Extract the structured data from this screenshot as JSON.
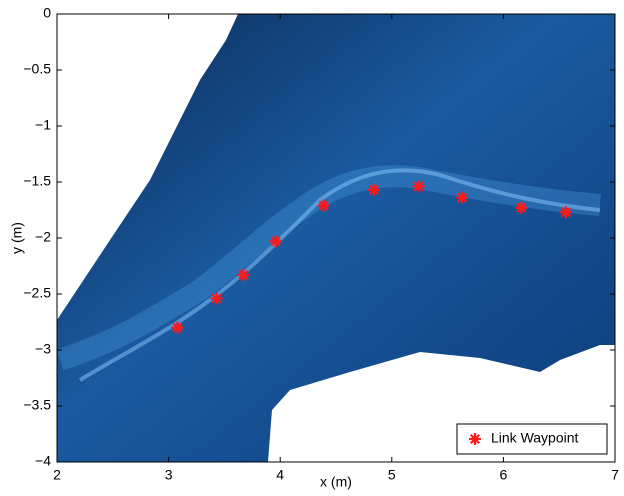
{
  "chart_data": {
    "type": "scatter",
    "x_label": "x (m)",
    "y_label": "y (m)",
    "series": [
      {
        "name": "Link Waypoint",
        "color": "#ff1a1a",
        "x": [
          3.08,
          3.43,
          3.67,
          3.96,
          4.39,
          4.84,
          5.24,
          5.63,
          6.16,
          6.56
        ],
        "values": [
          -2.8,
          -2.54,
          -2.33,
          -2.03,
          -1.71,
          -1.57,
          -1.54,
          -1.64,
          -1.73,
          -1.77
        ]
      }
    ],
    "xlim": [
      2,
      7
    ],
    "xticks": [
      2,
      3,
      4,
      5,
      6,
      7
    ],
    "ylim": [
      -4,
      0
    ],
    "yticks": [
      0,
      {
        "value": -0.5,
        "label": "−0.5"
      },
      {
        "value": -1,
        "label": "−1"
      },
      {
        "value": -1.5,
        "label": "−1.5"
      },
      {
        "value": -2,
        "label": "−2"
      },
      {
        "value": -2.5,
        "label": "−2.5"
      },
      {
        "value": -3,
        "label": "−3"
      },
      {
        "value": -3.5,
        "label": "−3.5"
      },
      {
        "value": -4,
        "label": "−4"
      }
    ],
    "legend": "lower right"
  }
}
